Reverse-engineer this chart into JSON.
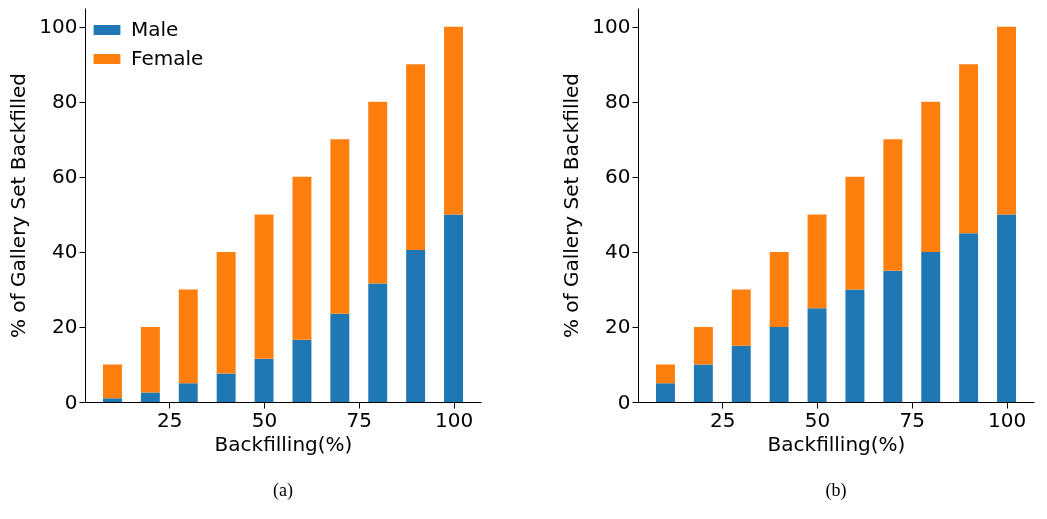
{
  "chart_data": [
    {
      "type": "bar",
      "stacked": true,
      "xlabel": "Backfilling(%)",
      "ylabel": "% of Gallery Set Backfilled",
      "x": [
        10,
        20,
        30,
        40,
        50,
        60,
        70,
        80,
        90,
        100
      ],
      "xlim": [
        2.75,
        107.25
      ],
      "xticks": [
        25,
        50,
        75,
        100
      ],
      "ylim": [
        0,
        105
      ],
      "yticks": [
        0,
        20,
        40,
        60,
        80,
        100
      ],
      "grid": false,
      "legend": "top left",
      "annotations": [
        "(a)"
      ],
      "series": [
        {
          "name": "Male",
          "color": "#1f77b4",
          "values": [
            1,
            2.5,
            5,
            7.6,
            11.5,
            16.6,
            23.5,
            31.6,
            40.5,
            50
          ]
        },
        {
          "name": "Female",
          "color": "#ff7f0e",
          "values": [
            9,
            17.5,
            25,
            32.4,
            38.5,
            43.4,
            46.5,
            48.4,
            49.5,
            50
          ]
        }
      ]
    },
    {
      "type": "bar",
      "stacked": true,
      "xlabel": "Backfilling(%)",
      "ylabel": "% of Gallery Set Backfilled",
      "x": [
        10,
        20,
        30,
        40,
        50,
        60,
        70,
        80,
        90,
        100
      ],
      "xlim": [
        2.75,
        107.25
      ],
      "xticks": [
        25,
        50,
        75,
        100
      ],
      "ylim": [
        0,
        105
      ],
      "yticks": [
        0,
        20,
        40,
        60,
        80,
        100
      ],
      "grid": false,
      "legend": "top left",
      "annotations": [
        "(b)"
      ],
      "series": [
        {
          "name": "Male",
          "color": "#1f77b4",
          "values": [
            5,
            10,
            15,
            20,
            25,
            30,
            35,
            40,
            45,
            50
          ]
        },
        {
          "name": "Female",
          "color": "#ff7f0e",
          "values": [
            5,
            10,
            15,
            20,
            25,
            30,
            35,
            40,
            45,
            50
          ]
        }
      ]
    }
  ]
}
